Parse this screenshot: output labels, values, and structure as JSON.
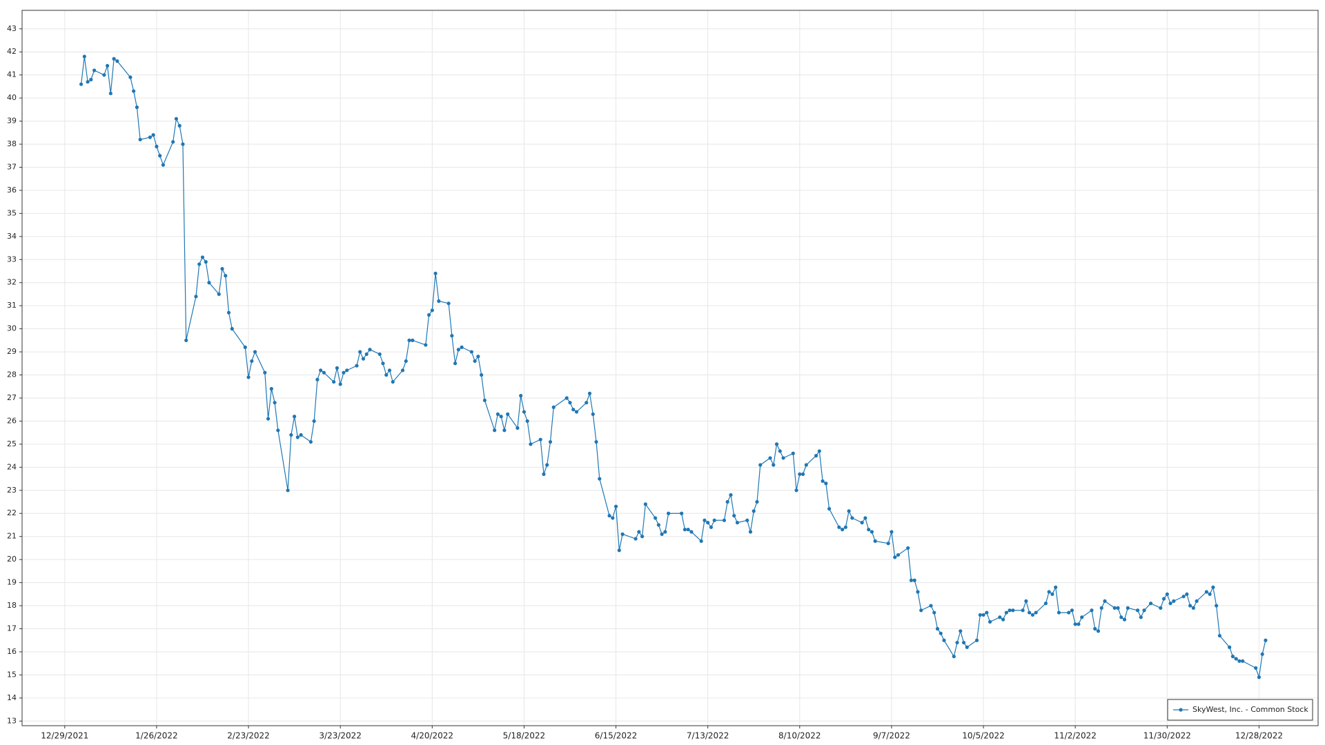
{
  "chart_data": {
    "type": "line",
    "legend": "lower right",
    "grid": true,
    "xlim": [
      "12/16/2021",
      "1/15/2023"
    ],
    "xticks": [
      "12/29/2021",
      "1/26/2022",
      "2/23/2022",
      "3/23/2022",
      "4/20/2022",
      "5/18/2022",
      "6/15/2022",
      "7/13/2022",
      "8/10/2022",
      "9/7/2022",
      "10/5/2022",
      "11/2/2022",
      "11/30/2022",
      "12/28/2022"
    ],
    "ylim": [
      12.8,
      43.8
    ],
    "yticks": [
      13,
      14,
      15,
      16,
      17,
      18,
      19,
      20,
      21,
      22,
      23,
      24,
      25,
      26,
      27,
      28,
      29,
      30,
      31,
      32,
      33,
      34,
      35,
      36,
      37,
      38,
      39,
      40,
      41,
      42,
      43
    ],
    "x": [
      "1/3/2022",
      "1/4/2022",
      "1/5/2022",
      "1/6/2022",
      "1/7/2022",
      "1/10/2022",
      "1/11/2022",
      "1/12/2022",
      "1/13/2022",
      "1/14/2022",
      "1/18/2022",
      "1/19/2022",
      "1/20/2022",
      "1/21/2022",
      "1/24/2022",
      "1/25/2022",
      "1/26/2022",
      "1/27/2022",
      "1/28/2022",
      "1/31/2022",
      "2/1/2022",
      "2/2/2022",
      "2/3/2022",
      "2/4/2022",
      "2/7/2022",
      "2/8/2022",
      "2/9/2022",
      "2/10/2022",
      "2/11/2022",
      "2/14/2022",
      "2/15/2022",
      "2/16/2022",
      "2/17/2022",
      "2/18/2022",
      "2/22/2022",
      "2/23/2022",
      "2/24/2022",
      "2/25/2022",
      "2/28/2022",
      "3/1/2022",
      "3/2/2022",
      "3/3/2022",
      "3/4/2022",
      "3/7/2022",
      "3/8/2022",
      "3/9/2022",
      "3/10/2022",
      "3/11/2022",
      "3/14/2022",
      "3/15/2022",
      "3/16/2022",
      "3/17/2022",
      "3/18/2022",
      "3/21/2022",
      "3/22/2022",
      "3/23/2022",
      "3/24/2022",
      "3/25/2022",
      "3/28/2022",
      "3/29/2022",
      "3/30/2022",
      "3/31/2022",
      "4/1/2022",
      "4/4/2022",
      "4/5/2022",
      "4/6/2022",
      "4/7/2022",
      "4/8/2022",
      "4/11/2022",
      "4/12/2022",
      "4/13/2022",
      "4/14/2022",
      "4/18/2022",
      "4/19/2022",
      "4/20/2022",
      "4/21/2022",
      "4/22/2022",
      "4/25/2022",
      "4/26/2022",
      "4/27/2022",
      "4/28/2022",
      "4/29/2022",
      "5/2/2022",
      "5/3/2022",
      "5/4/2022",
      "5/5/2022",
      "5/6/2022",
      "5/9/2022",
      "5/10/2022",
      "5/11/2022",
      "5/12/2022",
      "5/13/2022",
      "5/16/2022",
      "5/17/2022",
      "5/18/2022",
      "5/19/2022",
      "5/20/2022",
      "5/23/2022",
      "5/24/2022",
      "5/25/2022",
      "5/26/2022",
      "5/27/2022",
      "5/31/2022",
      "6/1/2022",
      "6/2/2022",
      "6/3/2022",
      "6/6/2022",
      "6/7/2022",
      "6/8/2022",
      "6/9/2022",
      "6/10/2022",
      "6/13/2022",
      "6/14/2022",
      "6/15/2022",
      "6/16/2022",
      "6/17/2022",
      "6/21/2022",
      "6/22/2022",
      "6/23/2022",
      "6/24/2022",
      "6/27/2022",
      "6/28/2022",
      "6/29/2022",
      "6/30/2022",
      "7/1/2022",
      "7/5/2022",
      "7/6/2022",
      "7/7/2022",
      "7/8/2022",
      "7/11/2022",
      "7/12/2022",
      "7/13/2022",
      "7/14/2022",
      "7/15/2022",
      "7/18/2022",
      "7/19/2022",
      "7/20/2022",
      "7/21/2022",
      "7/22/2022",
      "7/25/2022",
      "7/26/2022",
      "7/27/2022",
      "7/28/2022",
      "7/29/2022",
      "8/1/2022",
      "8/2/2022",
      "8/3/2022",
      "8/4/2022",
      "8/5/2022",
      "8/8/2022",
      "8/9/2022",
      "8/10/2022",
      "8/11/2022",
      "8/12/2022",
      "8/15/2022",
      "8/16/2022",
      "8/17/2022",
      "8/18/2022",
      "8/19/2022",
      "8/22/2022",
      "8/23/2022",
      "8/24/2022",
      "8/25/2022",
      "8/26/2022",
      "8/29/2022",
      "8/30/2022",
      "8/31/2022",
      "9/1/2022",
      "9/2/2022",
      "9/6/2022",
      "9/7/2022",
      "9/8/2022",
      "9/9/2022",
      "9/12/2022",
      "9/13/2022",
      "9/14/2022",
      "9/15/2022",
      "9/16/2022",
      "9/19/2022",
      "9/20/2022",
      "9/21/2022",
      "9/22/2022",
      "9/23/2022",
      "9/26/2022",
      "9/27/2022",
      "9/28/2022",
      "9/29/2022",
      "9/30/2022",
      "10/3/2022",
      "10/4/2022",
      "10/5/2022",
      "10/6/2022",
      "10/7/2022",
      "10/10/2022",
      "10/11/2022",
      "10/12/2022",
      "10/13/2022",
      "10/14/2022",
      "10/17/2022",
      "10/18/2022",
      "10/19/2022",
      "10/20/2022",
      "10/21/2022",
      "10/24/2022",
      "10/25/2022",
      "10/26/2022",
      "10/27/2022",
      "10/28/2022",
      "10/31/2022",
      "11/1/2022",
      "11/2/2022",
      "11/3/2022",
      "11/4/2022",
      "11/7/2022",
      "11/8/2022",
      "11/9/2022",
      "11/10/2022",
      "11/11/2022",
      "11/14/2022",
      "11/15/2022",
      "11/16/2022",
      "11/17/2022",
      "11/18/2022",
      "11/21/2022",
      "11/22/2022",
      "11/23/2022",
      "11/25/2022",
      "11/28/2022",
      "11/29/2022",
      "11/30/2022",
      "12/1/2022",
      "12/2/2022",
      "12/5/2022",
      "12/6/2022",
      "12/7/2022",
      "12/8/2022",
      "12/9/2022",
      "12/12/2022",
      "12/13/2022",
      "12/14/2022",
      "12/15/2022",
      "12/16/2022",
      "12/19/2022",
      "12/20/2022",
      "12/21/2022",
      "12/22/2022",
      "12/23/2022",
      "12/27/2022",
      "12/28/2022",
      "12/29/2022",
      "12/30/2022"
    ],
    "series": [
      {
        "name": "SkyWest, Inc. - Common Stock",
        "color": "#1f77b4",
        "values": [
          40.6,
          41.8,
          40.7,
          40.8,
          41.2,
          41.0,
          41.4,
          40.2,
          41.7,
          41.6,
          40.9,
          40.3,
          39.6,
          38.2,
          38.3,
          38.4,
          37.9,
          37.5,
          37.1,
          38.1,
          39.1,
          38.8,
          38.0,
          29.5,
          31.4,
          32.8,
          33.1,
          32.9,
          32.0,
          31.5,
          32.6,
          32.3,
          30.7,
          30.0,
          29.2,
          27.9,
          28.6,
          29.0,
          28.1,
          26.1,
          27.4,
          26.8,
          25.6,
          23.0,
          25.4,
          26.2,
          25.3,
          25.4,
          25.1,
          26.0,
          27.8,
          28.2,
          28.1,
          27.7,
          28.3,
          27.6,
          28.1,
          28.2,
          28.4,
          29.0,
          28.7,
          28.9,
          29.1,
          28.9,
          28.5,
          28.0,
          28.2,
          27.7,
          28.2,
          28.6,
          29.5,
          29.5,
          29.3,
          30.6,
          30.8,
          32.4,
          31.2,
          31.1,
          29.7,
          28.5,
          29.1,
          29.2,
          29.0,
          28.6,
          28.8,
          28.0,
          26.9,
          25.6,
          26.3,
          26.2,
          25.6,
          26.3,
          25.7,
          27.1,
          26.4,
          26.0,
          25.0,
          25.2,
          23.7,
          24.1,
          25.1,
          26.6,
          27.0,
          26.8,
          26.5,
          26.4,
          26.8,
          27.2,
          26.3,
          25.1,
          23.5,
          21.9,
          21.8,
          22.3,
          20.4,
          21.1,
          20.9,
          21.2,
          21.0,
          22.4,
          21.8,
          21.5,
          21.1,
          21.2,
          22.0,
          22.0,
          21.3,
          21.3,
          21.2,
          20.8,
          21.7,
          21.6,
          21.4,
          21.7,
          21.7,
          22.5,
          22.8,
          21.9,
          21.6,
          21.7,
          21.2,
          22.1,
          22.5,
          24.1,
          24.4,
          24.1,
          25.0,
          24.7,
          24.4,
          24.6,
          23.0,
          23.7,
          23.7,
          24.1,
          24.5,
          24.7,
          23.4,
          23.3,
          22.2,
          21.4,
          21.3,
          21.4,
          22.1,
          21.8,
          21.6,
          21.8,
          21.3,
          21.2,
          20.8,
          20.7,
          21.2,
          20.1,
          20.2,
          20.5,
          19.1,
          19.1,
          18.6,
          17.8,
          18.0,
          17.7,
          17.0,
          16.8,
          16.5,
          15.8,
          16.4,
          16.9,
          16.4,
          16.2,
          16.5,
          17.6,
          17.6,
          17.7,
          17.3,
          17.5,
          17.4,
          17.7,
          17.8,
          17.8,
          17.8,
          18.2,
          17.7,
          17.6,
          17.7,
          18.1,
          18.6,
          18.5,
          18.8,
          17.7,
          17.7,
          17.8,
          17.2,
          17.2,
          17.5,
          17.8,
          17.0,
          16.9,
          17.9,
          18.2,
          17.9,
          17.9,
          17.5,
          17.4,
          17.9,
          17.8,
          17.5,
          17.8,
          18.1,
          17.9,
          18.3,
          18.5,
          18.1,
          18.2,
          18.4,
          18.5,
          18.0,
          17.9,
          18.2,
          18.6,
          18.5,
          18.8,
          18.0,
          16.7,
          16.2,
          15.8,
          15.7,
          15.6,
          15.6,
          15.3,
          14.9,
          15.9,
          16.5
        ]
      }
    ]
  }
}
